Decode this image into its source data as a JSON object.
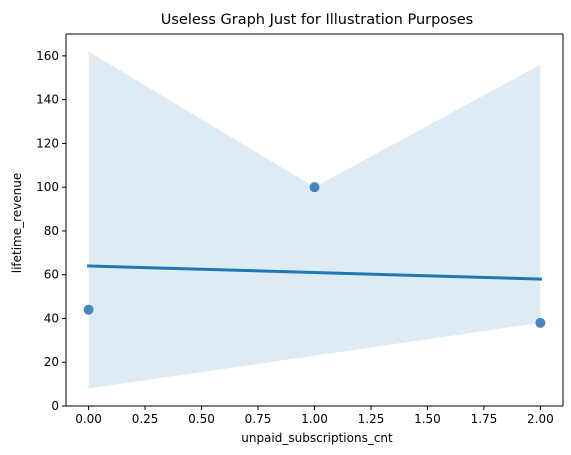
{
  "chart_data": {
    "type": "scatter",
    "title": "Useless Graph Just for Illustration Purposes",
    "xlabel": "unpaid_subscriptions_cnt",
    "ylabel": "lifetime_revenue",
    "xlim": [
      -0.1,
      2.1
    ],
    "ylim": [
      0,
      170
    ],
    "xticks": [
      0.0,
      0.25,
      0.5,
      0.75,
      1.0,
      1.25,
      1.5,
      1.75,
      2.0
    ],
    "xtick_labels": [
      "0.00",
      "0.25",
      "0.50",
      "0.75",
      "1.00",
      "1.25",
      "1.50",
      "1.75",
      "2.00"
    ],
    "yticks": [
      0,
      20,
      40,
      60,
      80,
      100,
      120,
      140,
      160
    ],
    "ytick_labels": [
      "0",
      "20",
      "40",
      "60",
      "80",
      "100",
      "120",
      "140",
      "160"
    ],
    "points": [
      {
        "x": 0,
        "y": 44
      },
      {
        "x": 1,
        "y": 100
      },
      {
        "x": 2,
        "y": 38
      }
    ],
    "regression_line": {
      "x": [
        0,
        2
      ],
      "y": [
        64,
        58
      ]
    },
    "confidence_band": {
      "x": [
        0,
        1,
        2
      ],
      "upper": [
        162,
        100,
        156
      ],
      "lower": [
        8,
        23,
        38
      ]
    },
    "grid": false,
    "legend": "none",
    "colors": {
      "point": "#3b81bb",
      "line": "#1f77b4",
      "band": "#1f77b4"
    }
  }
}
